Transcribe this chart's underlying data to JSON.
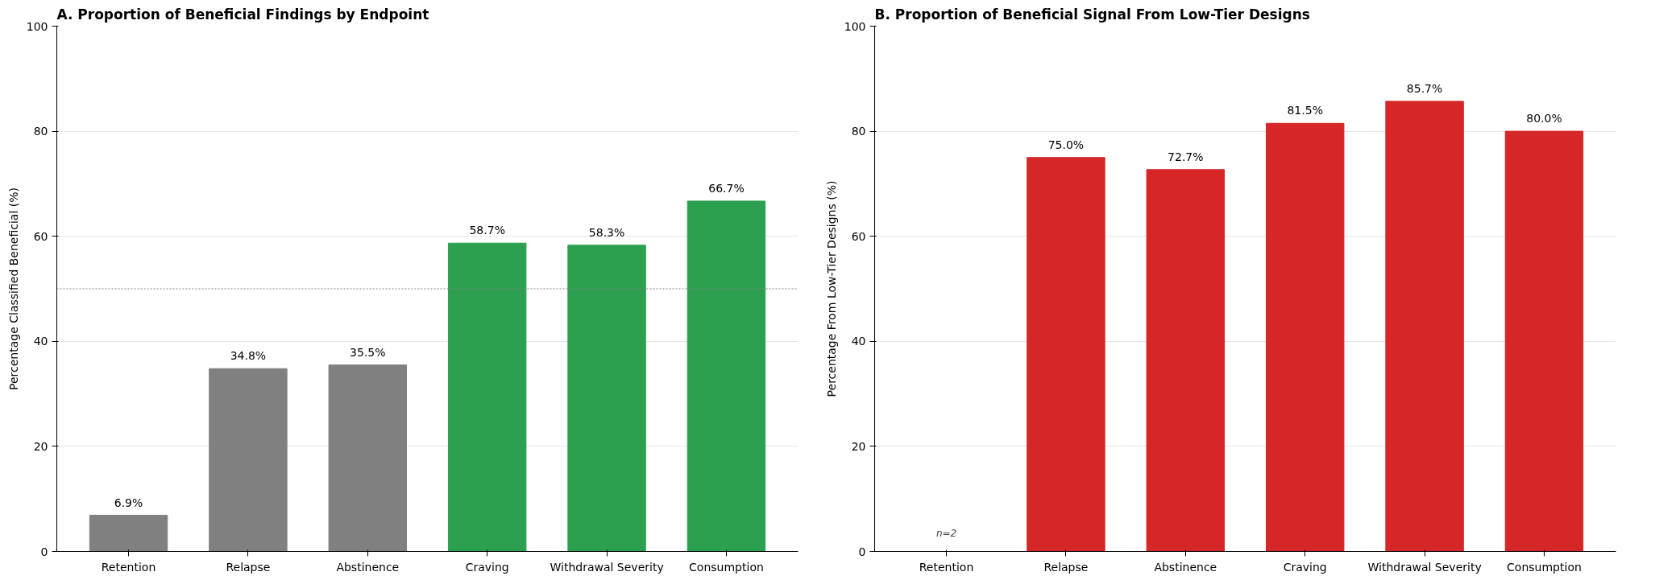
{
  "chart_data": [
    {
      "type": "bar",
      "title": "A. Proportion of Beneficial Findings by Endpoint",
      "ylabel": "Percentage Classified Beneficial (%)",
      "categories": [
        "Retention",
        "Relapse",
        "Abstinence",
        "Craving",
        "Withdrawal Severity",
        "Consumption"
      ],
      "values": [
        6.9,
        34.8,
        35.5,
        58.7,
        58.3,
        66.7
      ],
      "colors": [
        "#808080",
        "#808080",
        "#808080",
        "#2ca050",
        "#2ca050",
        "#2ca050"
      ],
      "value_labels": [
        "6.9%",
        "34.8%",
        "35.5%",
        "58.7%",
        "58.3%",
        "66.7%"
      ],
      "ylim": [
        0,
        100
      ],
      "yticks": [
        0,
        20,
        40,
        60,
        80,
        100
      ],
      "grid": "y",
      "ref_lines": [
        {
          "axis": "y",
          "value": 50,
          "color": "#808080",
          "line_style": "dotted"
        }
      ]
    },
    {
      "type": "bar",
      "title": "B. Proportion of Beneficial Signal From Low-Tier Designs",
      "ylabel": "Percentage From Low-Tier Designs (%)",
      "categories": [
        "Retention",
        "Relapse",
        "Abstinence",
        "Craving",
        "Withdrawal Severity",
        "Consumption"
      ],
      "values": [
        null,
        75.0,
        72.7,
        81.5,
        85.7,
        80.0
      ],
      "color": "#d62728",
      "value_labels": [
        null,
        "75.0%",
        "72.7%",
        "81.5%",
        "85.7%",
        "80.0%"
      ],
      "ylim": [
        0,
        100
      ],
      "yticks": [
        0,
        20,
        40,
        60,
        80,
        100
      ],
      "grid": "y",
      "annotations": [
        "n=2"
      ]
    }
  ]
}
